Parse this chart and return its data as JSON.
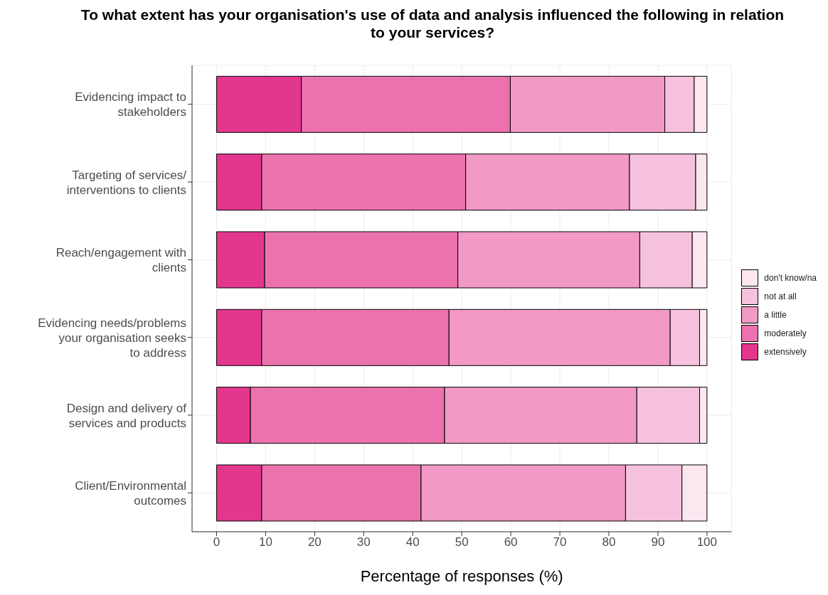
{
  "chart_data": {
    "type": "bar",
    "orientation": "horizontal",
    "stacked": true,
    "title": "To what extent has your organisation's use of data and analysis influenced the following in relation to your services?",
    "xlabel": "Percentage of responses (%)",
    "categories": [
      "Evidencing impact to stakeholders",
      "Targeting of services/ interventions to clients",
      "Reach/engagement with clients",
      "Evidencing needs/problems your organisation seeks to address",
      "Design and delivery of services and products",
      "Client/Environmental outcomes"
    ],
    "series": [
      {
        "name": "extensively",
        "color": "#e3378e",
        "values": [
          17.3,
          9.2,
          9.8,
          9.2,
          6.9,
          9.2
        ]
      },
      {
        "name": "moderately",
        "color": "#ec72ad",
        "values": [
          42.6,
          41.6,
          39.4,
          38.2,
          39.6,
          32.5
        ]
      },
      {
        "name": "a little",
        "color": "#f299c6",
        "values": [
          31.5,
          33.4,
          37.1,
          45.1,
          39.2,
          41.7
        ]
      },
      {
        "name": "not at all",
        "color": "#f6c1dd",
        "values": [
          6.0,
          13.5,
          10.7,
          6.0,
          12.8,
          11.5
        ]
      },
      {
        "name": "don't know/na",
        "color": "#fce6f0",
        "values": [
          2.6,
          2.3,
          3.0,
          1.5,
          1.5,
          5.1
        ]
      }
    ],
    "xlim": [
      -5,
      105
    ],
    "xticks": [
      0,
      10,
      20,
      30,
      40,
      50,
      60,
      70,
      80,
      90,
      100
    ],
    "grid": true,
    "legend": "right"
  }
}
